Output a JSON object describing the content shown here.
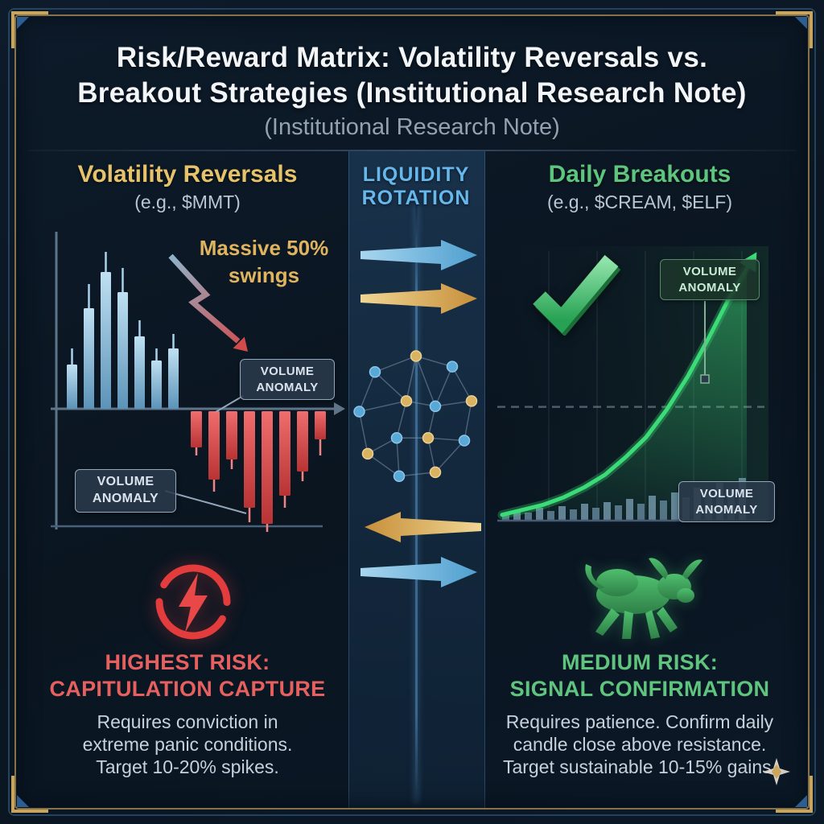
{
  "header": {
    "title_line1": "Risk/Reward Matrix: Volatility Reversals vs.",
    "title_line2": "Breakout Strategies (Institutional Research Note)",
    "subtitle": "(Institutional Research Note)"
  },
  "left_panel": {
    "heading": "Volatility Reversals",
    "subheading": "(e.g., $MMT)",
    "annotation_line1": "Massive 50%",
    "annotation_line2": "swings",
    "risk_line1": "HIGHEST RISK:",
    "risk_line2": "CAPITULATION CAPTURE",
    "body_line1": "Requires conviction in",
    "body_line2": "extreme panic conditions.",
    "body_line3": "Target 10-20% spikes."
  },
  "center_panel": {
    "heading_line1": "LIQUIDITY",
    "heading_line2": "ROTATION"
  },
  "right_panel": {
    "heading": "Daily Breakouts",
    "subheading": "(e.g., $CREAM, $ELF)",
    "risk_line1": "MEDIUM RISK:",
    "risk_line2": "SIGNAL CONFIRMATION",
    "body_line1": "Requires patience. Confirm daily",
    "body_line2": "candle close above resistance.",
    "body_line3": "Target sustainable 10-15% gains."
  },
  "badge": {
    "line1": "VOLUME",
    "line2": "ANOMALY"
  },
  "colors": {
    "background": "#0b1622",
    "title": "#f3f6f9",
    "subtitle": "#93a1b0",
    "gold_accent": "#e6c36b",
    "blue_accent": "#66b7ec",
    "green_accent": "#5fc57e",
    "red_accent": "#e66060",
    "candle_up": "#8fc3e4",
    "candle_down": "#df5050",
    "curve_green": "#3bdc77"
  },
  "chart_data": [
    {
      "id": "volatility_candles",
      "type": "candlestick",
      "title": "Volatility Reversals (e.g., $MMT)",
      "note": "Blue up-swing candles above the axis followed by red capitulation candles below; depicts massive 50% swings",
      "up_candle_bodies": [
        55,
        125,
        170,
        145,
        90,
        60,
        75
      ],
      "up_candle_wicks": [
        20,
        30,
        25,
        30,
        20,
        15,
        18
      ],
      "down_candle_bodies": [
        45,
        85,
        60,
        120,
        140,
        105,
        75,
        35
      ],
      "down_candle_wicks": [
        10,
        15,
        12,
        18,
        10,
        15,
        12,
        20
      ]
    },
    {
      "id": "breakout_curve",
      "type": "area",
      "title": "Daily Breakouts (e.g., $CREAM, $ELF)",
      "note": "Exponential breakout curve rising above dashed resistance with increasing volume bars",
      "x": [
        0,
        0.08,
        0.16,
        0.24,
        0.32,
        0.4,
        0.48,
        0.56,
        0.64,
        0.72,
        0.8,
        0.88,
        0.95
      ],
      "y": [
        0.02,
        0.04,
        0.06,
        0.09,
        0.13,
        0.18,
        0.25,
        0.33,
        0.44,
        0.57,
        0.72,
        0.88,
        1.0
      ],
      "resistance_y": 0.45,
      "volume_bars": [
        0.08,
        0.12,
        0.09,
        0.15,
        0.11,
        0.17,
        0.13,
        0.2,
        0.15,
        0.22,
        0.18,
        0.26,
        0.2,
        0.3,
        0.24,
        0.34,
        0.28,
        0.4,
        0.33,
        0.46,
        0.38,
        0.52
      ]
    },
    {
      "id": "liquidity_network",
      "type": "network",
      "nodes": [
        {
          "x": 0.5,
          "y": 0.04,
          "c": "gold"
        },
        {
          "x": 0.8,
          "y": 0.12,
          "c": "blue"
        },
        {
          "x": 0.96,
          "y": 0.38,
          "c": "gold"
        },
        {
          "x": 0.9,
          "y": 0.68,
          "c": "blue"
        },
        {
          "x": 0.66,
          "y": 0.92,
          "c": "gold"
        },
        {
          "x": 0.36,
          "y": 0.95,
          "c": "blue"
        },
        {
          "x": 0.1,
          "y": 0.78,
          "c": "gold"
        },
        {
          "x": 0.03,
          "y": 0.46,
          "c": "blue"
        },
        {
          "x": 0.16,
          "y": 0.16,
          "c": "blue"
        },
        {
          "x": 0.42,
          "y": 0.38,
          "c": "gold"
        },
        {
          "x": 0.66,
          "y": 0.42,
          "c": "blue"
        },
        {
          "x": 0.34,
          "y": 0.66,
          "c": "blue"
        },
        {
          "x": 0.6,
          "y": 0.66,
          "c": "gold"
        }
      ],
      "edges": [
        [
          0,
          1
        ],
        [
          1,
          2
        ],
        [
          2,
          3
        ],
        [
          3,
          4
        ],
        [
          4,
          5
        ],
        [
          5,
          6
        ],
        [
          6,
          7
        ],
        [
          7,
          8
        ],
        [
          8,
          0
        ],
        [
          0,
          9
        ],
        [
          9,
          10
        ],
        [
          10,
          2
        ],
        [
          9,
          11
        ],
        [
          11,
          6
        ],
        [
          11,
          12
        ],
        [
          12,
          3
        ],
        [
          10,
          12
        ],
        [
          9,
          7
        ],
        [
          0,
          10
        ],
        [
          5,
          11
        ],
        [
          4,
          12
        ],
        [
          1,
          10
        ],
        [
          8,
          9
        ]
      ]
    }
  ]
}
